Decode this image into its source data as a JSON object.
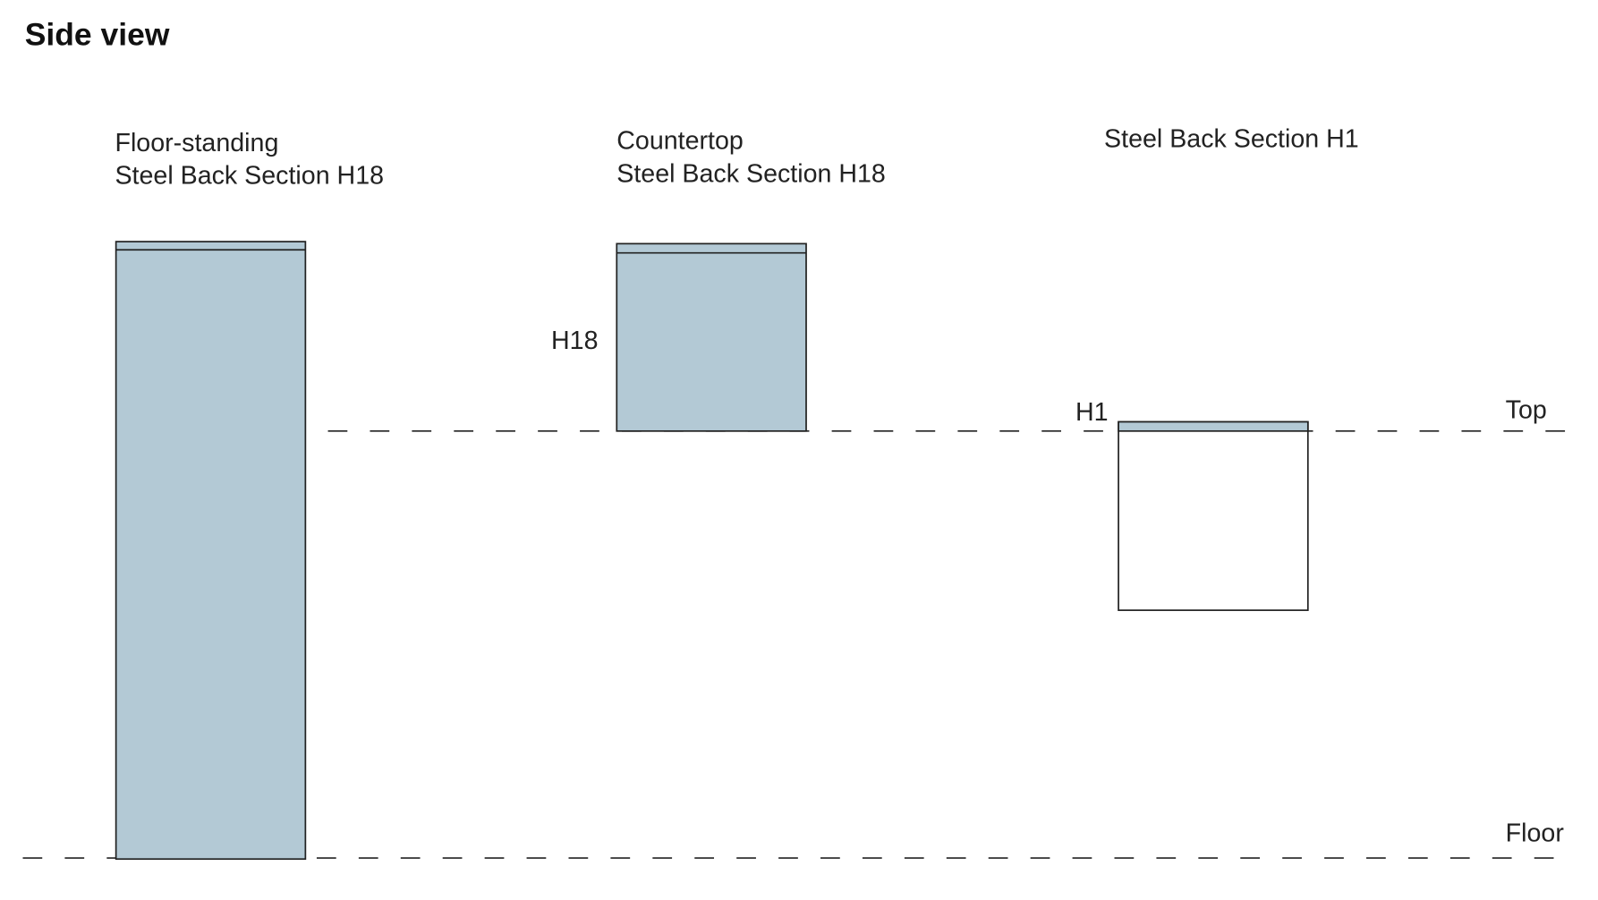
{
  "header": {
    "title": "Side view"
  },
  "units": [
    {
      "lines": [
        "Floor-standing",
        "Steel Back Section H18"
      ]
    },
    {
      "lines": [
        "Countertop",
        "Steel Back Section H18"
      ],
      "height_label": "H18"
    },
    {
      "lines": [
        "Steel Back Section H1"
      ],
      "height_label": "H1"
    }
  ],
  "levels": {
    "top": "Top",
    "floor": "Floor"
  }
}
